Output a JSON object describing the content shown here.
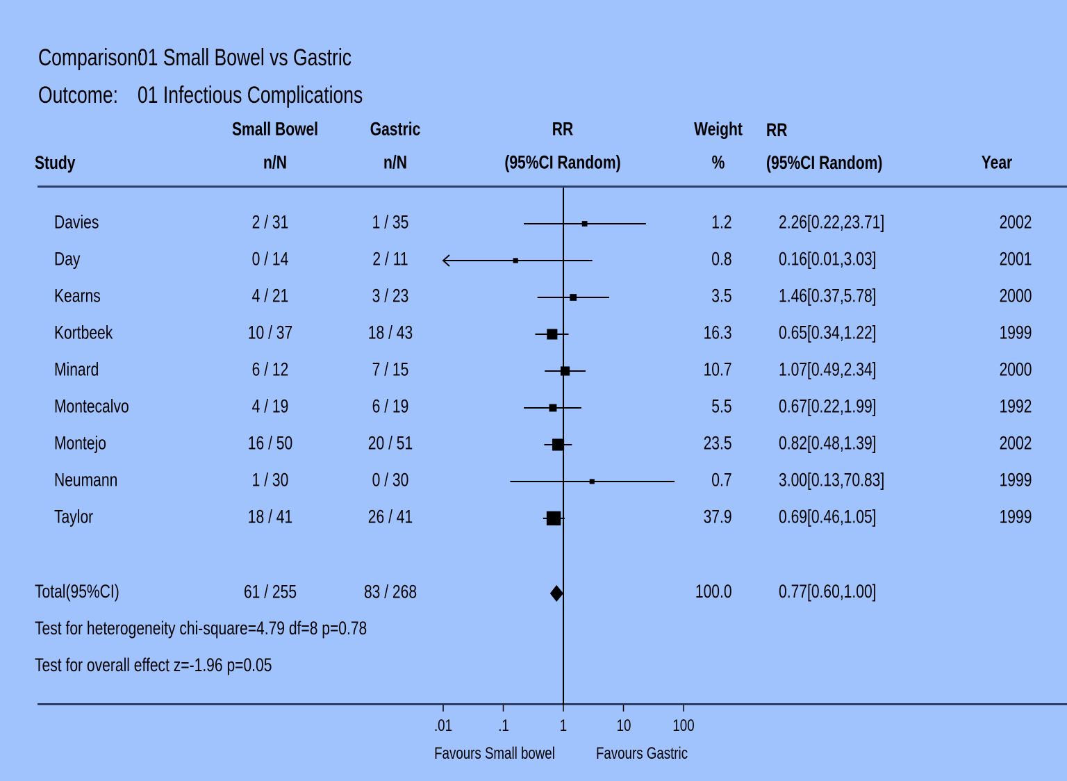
{
  "title": {
    "comparison_label": "Comparison:",
    "comparison_value": "01 Small Bowel vs Gastric",
    "outcome_label": "Outcome:",
    "outcome_value": "01 Infectious Complications"
  },
  "headers": {
    "study": "Study",
    "group1_top": "Small Bowel",
    "group1_bottom": "n/N",
    "group2_top": "Gastric",
    "group2_bottom": "n/N",
    "plot_top": "RR",
    "plot_bottom": "(95%CI Random)",
    "weight_top": "Weight",
    "weight_bottom": "%",
    "rr_top": "RR",
    "rr_bottom": "(95%CI Random)",
    "year": "Year"
  },
  "studies": [
    {
      "name": "Davies",
      "g1": "2 / 31",
      "g2": "1 / 35",
      "weight": "1.2",
      "rr_text": "2.26[0.22,23.71]",
      "year": "2002"
    },
    {
      "name": "Day",
      "g1": "0 / 14",
      "g2": "2 / 11",
      "weight": "0.8",
      "rr_text": "0.16[0.01,3.03]",
      "year": "2001"
    },
    {
      "name": "Kearns",
      "g1": "4 / 21",
      "g2": "3 / 23",
      "weight": "3.5",
      "rr_text": "1.46[0.37,5.78]",
      "year": "2000"
    },
    {
      "name": "Kortbeek",
      "g1": "10 / 37",
      "g2": "18 / 43",
      "weight": "16.3",
      "rr_text": "0.65[0.34,1.22]",
      "year": "1999"
    },
    {
      "name": "Minard",
      "g1": "6 / 12",
      "g2": "7 / 15",
      "weight": "10.7",
      "rr_text": "1.07[0.49,2.34]",
      "year": "2000"
    },
    {
      "name": "Montecalvo",
      "g1": "4 / 19",
      "g2": "6 / 19",
      "weight": "5.5",
      "rr_text": "0.67[0.22,1.99]",
      "year": "1992"
    },
    {
      "name": "Montejo",
      "g1": "16 / 50",
      "g2": "20 / 51",
      "weight": "23.5",
      "rr_text": "0.82[0.48,1.39]",
      "year": "2002"
    },
    {
      "name": "Neumann",
      "g1": "1 / 30",
      "g2": "0 / 30",
      "weight": "0.7",
      "rr_text": "3.00[0.13,70.83]",
      "year": "1999"
    },
    {
      "name": "Taylor",
      "g1": "18 / 41",
      "g2": "26 / 41",
      "weight": "37.9",
      "rr_text": "0.69[0.46,1.05]",
      "year": "1999"
    }
  ],
  "total": {
    "label": "Total(95%CI)",
    "g1": "61 / 255",
    "g2": "83 / 268",
    "weight": "100.0",
    "rr_text": "0.77[0.60,1.00]"
  },
  "tests": {
    "heterogeneity": "Test for heterogeneity chi-square=4.79  df=8  p=0.78",
    "overall": "Test for overall effect  z=-1.96  p=0.05"
  },
  "axis": {
    "ticks": [
      ".01",
      ".1",
      "1",
      "10",
      "100"
    ],
    "favours_left": "Favours Small bowel",
    "favours_right": "Favours Gastric"
  },
  "colors": {
    "background": "#a1c3fd",
    "rule": "#2c3e66",
    "ink": "#000000"
  },
  "chart_data": {
    "type": "forest",
    "scale": "log",
    "xlim": [
      0.01,
      100
    ],
    "xticks": [
      0.01,
      0.1,
      1,
      10,
      100
    ],
    "reference_line": 1,
    "points": [
      {
        "study": "Davies",
        "rr": 2.26,
        "lo": 0.22,
        "hi": 23.71,
        "weight": 1.2
      },
      {
        "study": "Day",
        "rr": 0.16,
        "lo": 0.01,
        "hi": 3.03,
        "weight": 0.8,
        "arrow_left": true
      },
      {
        "study": "Kearns",
        "rr": 1.46,
        "lo": 0.37,
        "hi": 5.78,
        "weight": 3.5
      },
      {
        "study": "Kortbeek",
        "rr": 0.65,
        "lo": 0.34,
        "hi": 1.22,
        "weight": 16.3
      },
      {
        "study": "Minard",
        "rr": 1.07,
        "lo": 0.49,
        "hi": 2.34,
        "weight": 10.7
      },
      {
        "study": "Montecalvo",
        "rr": 0.67,
        "lo": 0.22,
        "hi": 1.99,
        "weight": 5.5
      },
      {
        "study": "Montejo",
        "rr": 0.82,
        "lo": 0.48,
        "hi": 1.39,
        "weight": 23.5
      },
      {
        "study": "Neumann",
        "rr": 3.0,
        "lo": 0.13,
        "hi": 70.83,
        "weight": 0.7
      },
      {
        "study": "Taylor",
        "rr": 0.69,
        "lo": 0.46,
        "hi": 1.05,
        "weight": 37.9
      }
    ],
    "pooled": {
      "rr": 0.77,
      "lo": 0.6,
      "hi": 1.0
    }
  }
}
